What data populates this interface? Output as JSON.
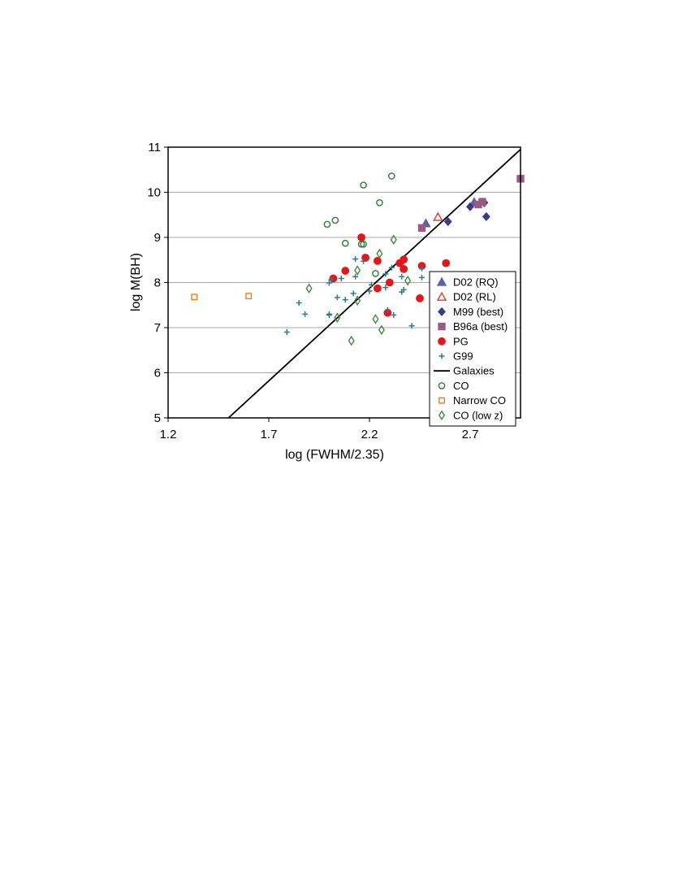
{
  "chart_data": {
    "type": "scatter",
    "title": "",
    "xlabel": "log (FWHM/2.35)",
    "ylabel": "log M(BH)",
    "xlim": [
      1.2,
      2.95
    ],
    "ylim": [
      5,
      11
    ],
    "xticks": [
      "1.2",
      "1.7",
      "2.2",
      "2.7"
    ],
    "yticks": [
      "5",
      "6",
      "7",
      "8",
      "9",
      "10",
      "11"
    ],
    "grid": "horizontal",
    "legend_position": "right",
    "series": [
      {
        "name": "D02 (RQ)",
        "marker": "triangle",
        "filled": true,
        "color": "#5a63a8",
        "points": [
          [
            2.48,
            9.31
          ],
          [
            2.72,
            9.78
          ]
        ]
      },
      {
        "name": "D02 (RL)",
        "marker": "triangle",
        "filled": false,
        "color": "#e03a2a",
        "points": [
          [
            2.54,
            9.45
          ]
        ]
      },
      {
        "name": "M99 (best)",
        "marker": "diamond",
        "filled": true,
        "color": "#3b3b85",
        "points": [
          [
            2.59,
            9.35
          ],
          [
            2.7,
            9.68
          ],
          [
            2.77,
            9.77
          ],
          [
            2.78,
            9.46
          ]
        ]
      },
      {
        "name": "B96a (best)",
        "marker": "square",
        "filled": true,
        "color": "#9c5a82",
        "points": [
          [
            2.46,
            9.21
          ],
          [
            2.74,
            9.73
          ],
          [
            2.76,
            9.79
          ],
          [
            2.95,
            10.3
          ]
        ]
      },
      {
        "name": "PG",
        "marker": "circle",
        "filled": true,
        "color": "#e8141a",
        "points": [
          [
            2.16,
            9.0
          ],
          [
            2.18,
            8.55
          ],
          [
            2.24,
            8.48
          ],
          [
            2.37,
            8.51
          ],
          [
            2.35,
            8.43
          ],
          [
            2.46,
            8.37
          ],
          [
            2.58,
            8.43
          ],
          [
            2.08,
            8.26
          ],
          [
            2.37,
            8.3
          ],
          [
            2.02,
            8.09
          ],
          [
            2.3,
            8.0
          ],
          [
            2.24,
            7.87
          ],
          [
            2.45,
            7.65
          ],
          [
            2.29,
            7.33
          ]
        ]
      },
      {
        "name": "G99",
        "marker": "plus",
        "filled": false,
        "color": "#2e7b8c",
        "points": [
          [
            2.13,
            8.52
          ],
          [
            2.17,
            8.47
          ],
          [
            2.31,
            8.33
          ],
          [
            2.46,
            8.31
          ],
          [
            2.28,
            8.19
          ],
          [
            2.13,
            8.13
          ],
          [
            2.01,
            8.06
          ],
          [
            2.06,
            8.09
          ],
          [
            2.36,
            8.13
          ],
          [
            2.46,
            8.11
          ],
          [
            2.0,
            7.99
          ],
          [
            2.21,
            7.95
          ],
          [
            2.28,
            7.89
          ],
          [
            2.2,
            7.81
          ],
          [
            2.12,
            7.76
          ],
          [
            2.36,
            7.79
          ],
          [
            2.37,
            7.84
          ],
          [
            2.04,
            7.67
          ],
          [
            2.08,
            7.62
          ],
          [
            1.85,
            7.55
          ],
          [
            1.88,
            7.3
          ],
          [
            2.0,
            7.3
          ],
          [
            2.0,
            7.28
          ],
          [
            2.29,
            7.39
          ],
          [
            2.32,
            7.28
          ],
          [
            2.41,
            7.04
          ],
          [
            1.79,
            6.9
          ]
        ]
      },
      {
        "name": "CO",
        "marker": "circle",
        "filled": false,
        "color": "#2e7d32",
        "points": [
          [
            2.31,
            10.36
          ],
          [
            2.17,
            10.16
          ],
          [
            2.25,
            9.77
          ],
          [
            2.03,
            9.38
          ],
          [
            1.99,
            9.29
          ],
          [
            2.08,
            8.87
          ],
          [
            2.16,
            8.85
          ],
          [
            2.17,
            8.85
          ],
          [
            2.23,
            8.2
          ]
        ]
      },
      {
        "name": "Narrow CO",
        "marker": "square",
        "filled": false,
        "color": "#f07d22",
        "points": [
          [
            1.33,
            7.68
          ],
          [
            1.6,
            7.7
          ]
        ]
      },
      {
        "name": "CO (low z)",
        "marker": "diamond",
        "filled": false,
        "color": "#3c8c3c",
        "points": [
          [
            2.32,
            8.95
          ],
          [
            2.25,
            8.64
          ],
          [
            2.14,
            8.27
          ],
          [
            2.39,
            8.04
          ],
          [
            1.9,
            7.87
          ],
          [
            2.14,
            7.6
          ],
          [
            2.04,
            7.22
          ],
          [
            2.23,
            7.19
          ],
          [
            2.26,
            6.95
          ],
          [
            2.11,
            6.71
          ]
        ]
      }
    ],
    "lines": [
      {
        "name": "Galaxies",
        "color": "#000000",
        "points": [
          [
            1.5,
            5.0
          ],
          [
            2.95,
            10.95
          ]
        ]
      }
    ]
  }
}
